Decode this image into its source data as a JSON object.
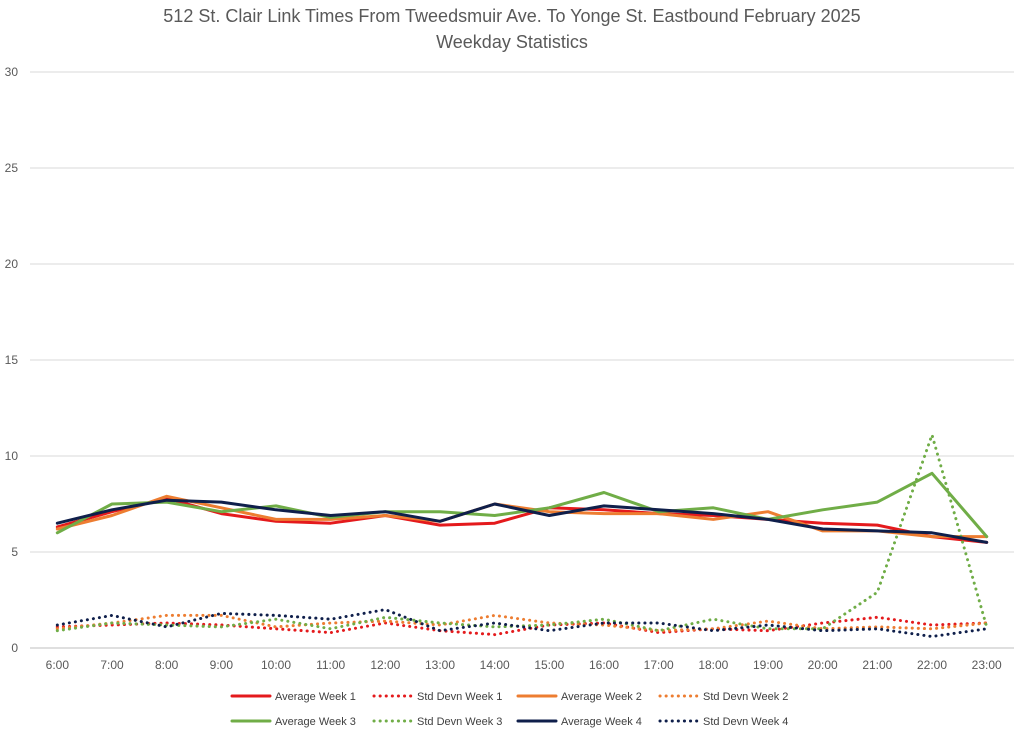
{
  "chart_data": {
    "type": "line",
    "title": "512 St. Clair Link Times From Tweedsmuir Ave. To Yonge St. Eastbound February 2025",
    "subtitle": "Weekday Statistics",
    "xlabel": "",
    "ylabel": "",
    "ylim": [
      0,
      30
    ],
    "yticks": [
      0,
      5,
      10,
      15,
      20,
      25,
      30
    ],
    "grid": true,
    "legend_position": "bottom",
    "categories": [
      "6:00",
      "7:00",
      "8:00",
      "9:00",
      "10:00",
      "11:00",
      "12:00",
      "13:00",
      "14:00",
      "15:00",
      "16:00",
      "17:00",
      "18:00",
      "19:00",
      "20:00",
      "21:00",
      "22:00",
      "23:00"
    ],
    "series": [
      {
        "name": "Average Week 1",
        "style": "solid",
        "color": "#e41a1c",
        "values": [
          6.3,
          7.1,
          7.8,
          7.0,
          6.6,
          6.5,
          6.9,
          6.4,
          6.5,
          7.3,
          7.2,
          7.0,
          6.9,
          6.7,
          6.5,
          6.4,
          5.8,
          5.5
        ]
      },
      {
        "name": "Std Devn Week 1",
        "style": "dotted",
        "color": "#e41a1c",
        "values": [
          1.1,
          1.2,
          1.3,
          1.2,
          1.0,
          0.8,
          1.3,
          0.9,
          0.7,
          1.2,
          1.3,
          0.8,
          1.0,
          0.9,
          1.3,
          1.6,
          1.2,
          1.3
        ]
      },
      {
        "name": "Average Week 2",
        "style": "solid",
        "color": "#ed7d31",
        "values": [
          6.2,
          6.9,
          7.9,
          7.3,
          6.7,
          6.7,
          6.9,
          6.6,
          7.5,
          7.1,
          7.0,
          7.0,
          6.7,
          7.1,
          6.1,
          6.1,
          5.8,
          5.8
        ]
      },
      {
        "name": "Std Devn Week 2",
        "style": "dotted",
        "color": "#ed7d31",
        "values": [
          1.0,
          1.3,
          1.7,
          1.7,
          1.1,
          1.3,
          1.4,
          1.2,
          1.7,
          1.3,
          1.2,
          0.9,
          1.0,
          1.4,
          1.0,
          1.1,
          1.0,
          1.3
        ]
      },
      {
        "name": "Average Week 3",
        "style": "solid",
        "color": "#70ad47",
        "values": [
          6.0,
          7.5,
          7.6,
          7.1,
          7.4,
          6.8,
          7.1,
          7.1,
          6.9,
          7.3,
          8.1,
          7.1,
          7.3,
          6.7,
          7.2,
          7.6,
          9.1,
          5.8
        ]
      },
      {
        "name": "Std Devn Week 3",
        "style": "dotted",
        "color": "#70ad47",
        "values": [
          0.9,
          1.3,
          1.2,
          1.1,
          1.5,
          1.0,
          1.6,
          1.3,
          1.1,
          1.2,
          1.5,
          0.9,
          1.5,
          1.0,
          1.0,
          2.9,
          11.1,
          1.1
        ]
      },
      {
        "name": "Average Week 4",
        "style": "solid",
        "color": "#0f1f4b",
        "values": [
          6.5,
          7.2,
          7.7,
          7.6,
          7.2,
          6.9,
          7.1,
          6.6,
          7.5,
          6.9,
          7.4,
          7.2,
          7.0,
          6.7,
          6.2,
          6.1,
          6.0,
          5.5
        ]
      },
      {
        "name": "Std Devn Week 4",
        "style": "dotted",
        "color": "#0f1f4b",
        "values": [
          1.2,
          1.7,
          1.1,
          1.8,
          1.7,
          1.5,
          2.0,
          0.9,
          1.3,
          0.9,
          1.3,
          1.3,
          0.9,
          1.2,
          0.9,
          1.0,
          0.6,
          1.0
        ]
      }
    ]
  }
}
